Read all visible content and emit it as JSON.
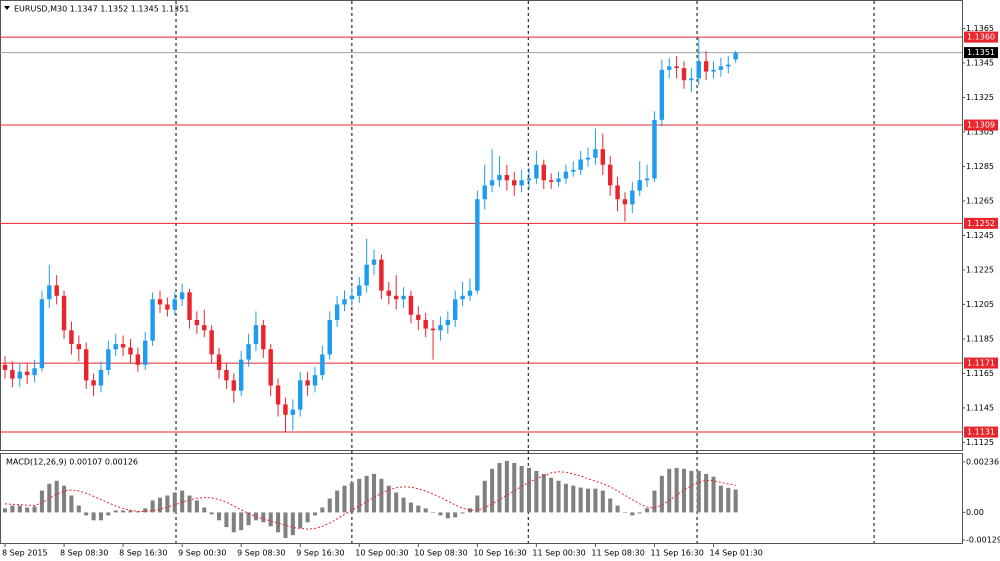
{
  "chart_data": [
    {
      "type": "candlestick",
      "title": "EURUSD,M30  1.1347 1.1352 1.1345 1.1351",
      "up_color": "#1e9cf0",
      "down_color": "#e8242c",
      "open": [
        1.117,
        1.1167,
        1.1162,
        1.1166,
        1.1164,
        1.1168,
        1.1208,
        1.1216,
        1.121,
        1.119,
        1.1182,
        1.1179,
        1.1161,
        1.1158,
        1.1167,
        1.1179,
        1.1182,
        1.118,
        1.1176,
        1.117,
        1.1184,
        1.1208,
        1.1205,
        1.1202,
        1.1208,
        1.1212,
        1.1196,
        1.1193,
        1.119,
        1.1176,
        1.1167,
        1.1161,
        1.1155,
        1.1173,
        1.1182,
        1.1193,
        1.1179,
        1.1158,
        1.1147,
        1.1141,
        1.1144,
        1.1161,
        1.1158,
        1.1164,
        1.1176,
        1.1196,
        1.1205,
        1.1208,
        1.121,
        1.1216,
        1.1228,
        1.1231,
        1.1213,
        1.121,
        1.1208,
        1.121,
        1.1199,
        1.1196,
        1.1191,
        1.119,
        1.1193,
        1.1196,
        1.1208,
        1.121,
        1.1213,
        1.1266,
        1.1274,
        1.1277,
        1.128,
        1.1277,
        1.1274,
        1.1277,
        1.1278,
        1.1286,
        1.1277,
        1.1276,
        1.1278,
        1.1282,
        1.1283,
        1.1289,
        1.129,
        1.1295,
        1.1286,
        1.1274,
        1.1266,
        1.1263,
        1.1271,
        1.1277,
        1.1278,
        1.1312,
        1.1341,
        1.1343,
        1.1342,
        1.1335,
        1.1336,
        1.1346,
        1.134,
        1.1341,
        1.1343,
        1.1347
      ],
      "high": [
        1.1175,
        1.1172,
        1.1171,
        1.1171,
        1.1173,
        1.1213,
        1.1228,
        1.1222,
        1.1213,
        1.1195,
        1.1187,
        1.1183,
        1.1165,
        1.1172,
        1.1184,
        1.1188,
        1.1187,
        1.1185,
        1.118,
        1.1189,
        1.1212,
        1.1213,
        1.1209,
        1.1212,
        1.1217,
        1.1214,
        1.1201,
        1.1202,
        1.1193,
        1.118,
        1.1171,
        1.1165,
        1.1178,
        1.1188,
        1.1201,
        1.1196,
        1.1182,
        1.1162,
        1.1151,
        1.115,
        1.1166,
        1.1166,
        1.1169,
        1.1181,
        1.1201,
        1.121,
        1.1213,
        1.1215,
        1.1221,
        1.1243,
        1.1237,
        1.1234,
        1.1218,
        1.1222,
        1.1215,
        1.1213,
        1.1204,
        1.12,
        1.1196,
        1.1198,
        1.1201,
        1.1213,
        1.1218,
        1.122,
        1.1271,
        1.1286,
        1.1295,
        1.1291,
        1.1286,
        1.1282,
        1.1283,
        1.1284,
        1.1294,
        1.1289,
        1.1281,
        1.1282,
        1.1286,
        1.1288,
        1.1294,
        1.1296,
        1.1307,
        1.1304,
        1.1291,
        1.1279,
        1.127,
        1.1276,
        1.1288,
        1.1286,
        1.1317,
        1.1347,
        1.1348,
        1.1349,
        1.1346,
        1.1342,
        1.136,
        1.1352,
        1.1346,
        1.1348,
        1.1349,
        1.1352
      ],
      "low": [
        1.1162,
        1.1157,
        1.1157,
        1.1159,
        1.116,
        1.1166,
        1.1203,
        1.1205,
        1.1185,
        1.1176,
        1.1172,
        1.1156,
        1.1152,
        1.1154,
        1.1164,
        1.1175,
        1.1175,
        1.1171,
        1.1166,
        1.1167,
        1.1181,
        1.12,
        1.1198,
        1.1199,
        1.1204,
        1.1191,
        1.1188,
        1.1186,
        1.1171,
        1.1162,
        1.1156,
        1.1148,
        1.1152,
        1.1169,
        1.1178,
        1.1174,
        1.1152,
        1.114,
        1.1131,
        1.1132,
        1.114,
        1.1152,
        1.1154,
        1.1161,
        1.1173,
        1.1192,
        1.1201,
        1.1204,
        1.1206,
        1.1212,
        1.1222,
        1.1208,
        1.1205,
        1.1202,
        1.1203,
        1.1194,
        1.119,
        1.1186,
        1.1173,
        1.1184,
        1.1188,
        1.1192,
        1.1204,
        1.1207,
        1.1211,
        1.126,
        1.127,
        1.1273,
        1.1271,
        1.1268,
        1.127,
        1.1272,
        1.1275,
        1.1272,
        1.1272,
        1.1273,
        1.1275,
        1.1279,
        1.128,
        1.1285,
        1.1286,
        1.128,
        1.1268,
        1.1259,
        1.1253,
        1.1258,
        1.1268,
        1.1273,
        1.1276,
        1.1308,
        1.1336,
        1.1336,
        1.133,
        1.1328,
        1.1332,
        1.1335,
        1.1336,
        1.1337,
        1.1339,
        1.1345
      ],
      "close": [
        1.1167,
        1.1162,
        1.1166,
        1.1164,
        1.1168,
        1.1208,
        1.1216,
        1.121,
        1.119,
        1.1182,
        1.1179,
        1.1161,
        1.1158,
        1.1167,
        1.1179,
        1.1182,
        1.118,
        1.1176,
        1.117,
        1.1184,
        1.1208,
        1.1205,
        1.1202,
        1.1208,
        1.1212,
        1.1196,
        1.1193,
        1.119,
        1.1176,
        1.1167,
        1.1161,
        1.1155,
        1.1173,
        1.1182,
        1.1193,
        1.1179,
        1.1158,
        1.1147,
        1.1141,
        1.1144,
        1.1161,
        1.1158,
        1.1164,
        1.1176,
        1.1196,
        1.1205,
        1.1208,
        1.121,
        1.1216,
        1.1228,
        1.1231,
        1.1213,
        1.121,
        1.1208,
        1.121,
        1.1199,
        1.1196,
        1.1191,
        1.119,
        1.1193,
        1.1196,
        1.1208,
        1.121,
        1.1213,
        1.1266,
        1.1274,
        1.1277,
        1.128,
        1.1277,
        1.1274,
        1.1277,
        1.1278,
        1.1286,
        1.1277,
        1.1276,
        1.1278,
        1.1282,
        1.1283,
        1.1289,
        1.129,
        1.1295,
        1.1286,
        1.1274,
        1.1266,
        1.1263,
        1.1271,
        1.1277,
        1.1278,
        1.1312,
        1.1341,
        1.1343,
        1.1342,
        1.1335,
        1.1336,
        1.1346,
        1.134,
        1.1341,
        1.1343,
        1.1344,
        1.1351
      ],
      "xlim": [
        -0.68,
        129.67
      ],
      "xticks": [
        {
          "value": 0,
          "label": "8 Sep 2015"
        },
        {
          "value": 8,
          "label": "8 Sep 08:30"
        },
        {
          "value": 16,
          "label": "8 Sep 16:30"
        },
        {
          "value": 24,
          "label": "9 Sep 00:30"
        },
        {
          "value": 32,
          "label": "9 Sep 08:30"
        },
        {
          "value": 40,
          "label": "9 Sep 16:30"
        },
        {
          "value": 48,
          "label": "10 Sep 00:30"
        },
        {
          "value": 56,
          "label": "10 Sep 08:30"
        },
        {
          "value": 64,
          "label": "10 Sep 16:30"
        },
        {
          "value": 72,
          "label": "11 Sep 00:30"
        },
        {
          "value": 80,
          "label": "11 Sep 08:30"
        },
        {
          "value": 88,
          "label": "11 Sep 16:30"
        },
        {
          "value": 96,
          "label": "14 Sep 01:30"
        }
      ],
      "vlines": [
        23.17,
        47.0,
        70.9,
        93.77,
        117.75
      ],
      "ylim": [
        1.11206,
        1.13815
      ],
      "yticks": [
        1.1365,
        1.1345,
        1.1325,
        1.1305,
        1.1285,
        1.1265,
        1.1245,
        1.1225,
        1.1205,
        1.1185,
        1.1165,
        1.1145,
        1.1125
      ],
      "hline_color": "#e8242c",
      "hlines": [
        {
          "value": 1.136,
          "label": "1.1360"
        },
        {
          "value": 1.1309,
          "label": "1.1309"
        },
        {
          "value": 1.1252,
          "label": "1.1252"
        },
        {
          "value": 1.1171,
          "label": "1.1171"
        },
        {
          "value": 1.1131,
          "label": "1.1131"
        }
      ],
      "current": 1.1351,
      "current_color": "#a0a0a0"
    },
    {
      "type": "macd",
      "title": "MACD(12,26,9) 0.00107 0.00126",
      "color": "#808080",
      "signal_color": "#e8242c",
      "values": [
        0.00019,
        0.00032,
        0.00032,
        0.00023,
        0.00028,
        0.00102,
        0.00134,
        0.00148,
        0.00125,
        0.00079,
        0.00032,
        -0.00014,
        -0.00037,
        -0.00037,
        -0.00014,
        9e-05,
        9e-05,
        9e-05,
        5e-05,
        0.00019,
        0.00056,
        0.00069,
        0.00079,
        0.00093,
        0.00102,
        0.00079,
        0.00056,
        0.00023,
        -9e-05,
        -0.00037,
        -0.00069,
        -0.00093,
        -0.00083,
        -0.0006,
        -0.00037,
        -0.00046,
        -0.00065,
        -0.00093,
        -0.0012,
        -0.00106,
        -0.00074,
        -0.00046,
        -0.00014,
        0.00023,
        0.00065,
        0.00102,
        0.00125,
        0.00139,
        0.00157,
        0.00171,
        0.0018,
        0.00157,
        0.00125,
        0.00093,
        0.00069,
        0.00046,
        0.00032,
        0.00019,
        0,
        -0.00014,
        -0.00028,
        -0.00023,
        -5e-05,
        0.00019,
        0.00079,
        0.00148,
        0.00204,
        0.00231,
        0.00241,
        0.00231,
        0.00217,
        0.00208,
        0.00194,
        0.0018,
        0.00162,
        0.00148,
        0.00134,
        0.00125,
        0.00116,
        0.00111,
        0.00111,
        0.00102,
        0.00065,
        0.00032,
        0,
        -0.00014,
        -5e-05,
        0.00019,
        0.00102,
        0.00171,
        0.00204,
        0.00208,
        0.00204,
        0.00194,
        0.00194,
        0.0018,
        0.00167,
        0.00125,
        0.00115,
        0.00107
      ],
      "signal": [
        0.0004,
        0.00038,
        0.00036,
        0.00034,
        0.00032,
        0.00045,
        0.00065,
        0.00085,
        0.001,
        0.00105,
        0.001,
        0.0009,
        0.00075,
        0.0006,
        0.00045,
        0.0003,
        0.00018,
        0.0001,
        5e-05,
        4e-05,
        8e-05,
        0.00015,
        0.00025,
        0.00035,
        0.00048,
        0.00058,
        0.00066,
        0.0007,
        0.00068,
        0.0006,
        0.00048,
        0.0003,
        0.00012,
        -5e-05,
        -0.0002,
        -0.0003,
        -0.0004,
        -0.0005,
        -0.0006,
        -0.0007,
        -0.00075,
        -0.00078,
        -0.00075,
        -0.00065,
        -0.0005,
        -0.0003,
        -0.0001,
        0.0001,
        0.0003,
        0.0005,
        0.0007,
        0.0009,
        0.00105,
        0.00115,
        0.0012,
        0.00118,
        0.0011,
        0.001,
        0.00085,
        0.0007,
        0.00052,
        0.00035,
        0.0002,
        0.0001,
        0.0001,
        0.00022,
        0.0004,
        0.0006,
        0.0008,
        0.001,
        0.00122,
        0.0014,
        0.00158,
        0.0017,
        0.00185,
        0.0019,
        0.00188,
        0.0018,
        0.0017,
        0.00158,
        0.00145,
        0.00135,
        0.0012,
        0.001,
        0.0008,
        0.0006,
        0.0004,
        0.00025,
        0.0002,
        0.00035,
        0.00055,
        0.0008,
        0.00105,
        0.00125,
        0.0014,
        0.0015,
        0.00148,
        0.0014,
        0.00133,
        0.00126
      ],
      "ylim": [
        -0.00143,
        0.00273
      ],
      "yticks": [
        0.00236,
        {
          "value": 0,
          "label": "0.00"
        },
        -0.00129
      ]
    }
  ]
}
